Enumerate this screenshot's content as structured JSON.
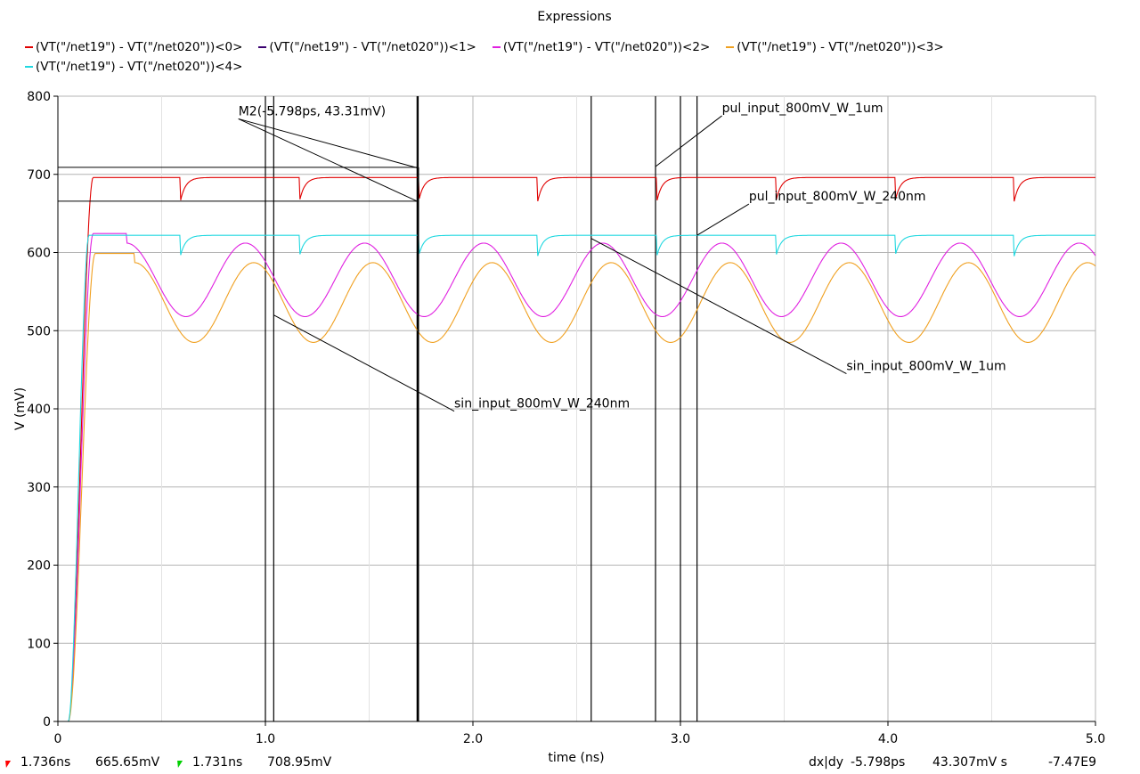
{
  "chart_data": {
    "type": "line",
    "title": "Expressions",
    "xlabel": "time (ns)",
    "ylabel": "V (mV)",
    "xlim": [
      0,
      5.0
    ],
    "ylim": [
      0,
      800
    ],
    "xticks": [
      0,
      1.0,
      2.0,
      3.0,
      4.0,
      5.0
    ],
    "xtick_labels": [
      "0",
      "1.0",
      "2.0",
      "3.0",
      "4.0",
      "5.0"
    ],
    "yticks": [
      0,
      100,
      200,
      300,
      400,
      500,
      600,
      700,
      800
    ],
    "ytick_labels": [
      "0",
      "100",
      "200",
      "300",
      "400",
      "500",
      "600",
      "700",
      "800"
    ],
    "grid": true,
    "legend_position": "top",
    "series": [
      {
        "name": "(VT(\"/net19\") - VT(\"/net020\"))<0>",
        "color": "#e00000",
        "kind": "pulse",
        "level": 696,
        "spike_to": 665,
        "rise_time": 0.12,
        "period": 0.574,
        "first_spike": 0.59
      },
      {
        "name": "(VT(\"/net19\") - VT(\"/net020\"))<1>",
        "color": "#3a0070",
        "kind": "none"
      },
      {
        "name": "(VT(\"/net19\") - VT(\"/net020\"))<2>",
        "color": "#e020e0",
        "kind": "sine",
        "level": 612,
        "trough": 518,
        "rise_time": 0.12,
        "period": 0.574,
        "first_peak": 0.33
      },
      {
        "name": "(VT(\"/net19\") - VT(\"/net020\"))<3>",
        "color": "#f0a020",
        "kind": "sine",
        "level": 587,
        "trough": 485,
        "rise_time": 0.13,
        "period": 0.574,
        "first_peak": 0.37
      },
      {
        "name": "(VT(\"/net19\") - VT(\"/net020\"))<4>",
        "color": "#20d8e0",
        "kind": "pulse",
        "level": 622,
        "spike_to": 595,
        "rise_time": 0.1,
        "period": 0.574,
        "first_spike": 0.59
      }
    ],
    "vertical_markers": [
      1.0,
      1.04,
      1.731,
      1.736,
      2.57,
      2.88,
      3.0,
      3.08
    ],
    "annotations": [
      {
        "text": "M2(-5.798ps, 43.31mV)",
        "label_x": 0.87,
        "label_y": 771,
        "targets": [
          [
            1.736,
            708
          ],
          [
            1.736,
            665
          ]
        ]
      },
      {
        "text": "pul_input_800mV_W_1um",
        "label_x": 3.2,
        "label_y": 775,
        "targets": [
          [
            2.88,
            710
          ]
        ]
      },
      {
        "text": "pul_input_800mV_W_240nm",
        "label_x": 3.33,
        "label_y": 662,
        "targets": [
          [
            3.08,
            622
          ]
        ]
      },
      {
        "text": "sin_input_800mV_W_1um",
        "label_x": 3.8,
        "label_y": 445,
        "targets": [
          [
            2.57,
            618
          ]
        ]
      },
      {
        "text": "sin_input_800mV_W_240nm",
        "label_x": 1.91,
        "label_y": 397,
        "targets": [
          [
            1.04,
            520
          ]
        ]
      }
    ],
    "delta_box": {
      "x1": 0,
      "x2": 1.736,
      "y_top": 708.95,
      "y_bottom": 665.65
    }
  },
  "status_bar": {
    "marker_a_time": "1.736ns",
    "marker_a_value": "665.65mV",
    "marker_b_time": "1.731ns",
    "marker_b_value": "708.95mV",
    "delta_label": "dx|dy",
    "delta_x": "-5.798ps",
    "delta_y": "43.307mV s",
    "slope": "-7.47E9"
  }
}
